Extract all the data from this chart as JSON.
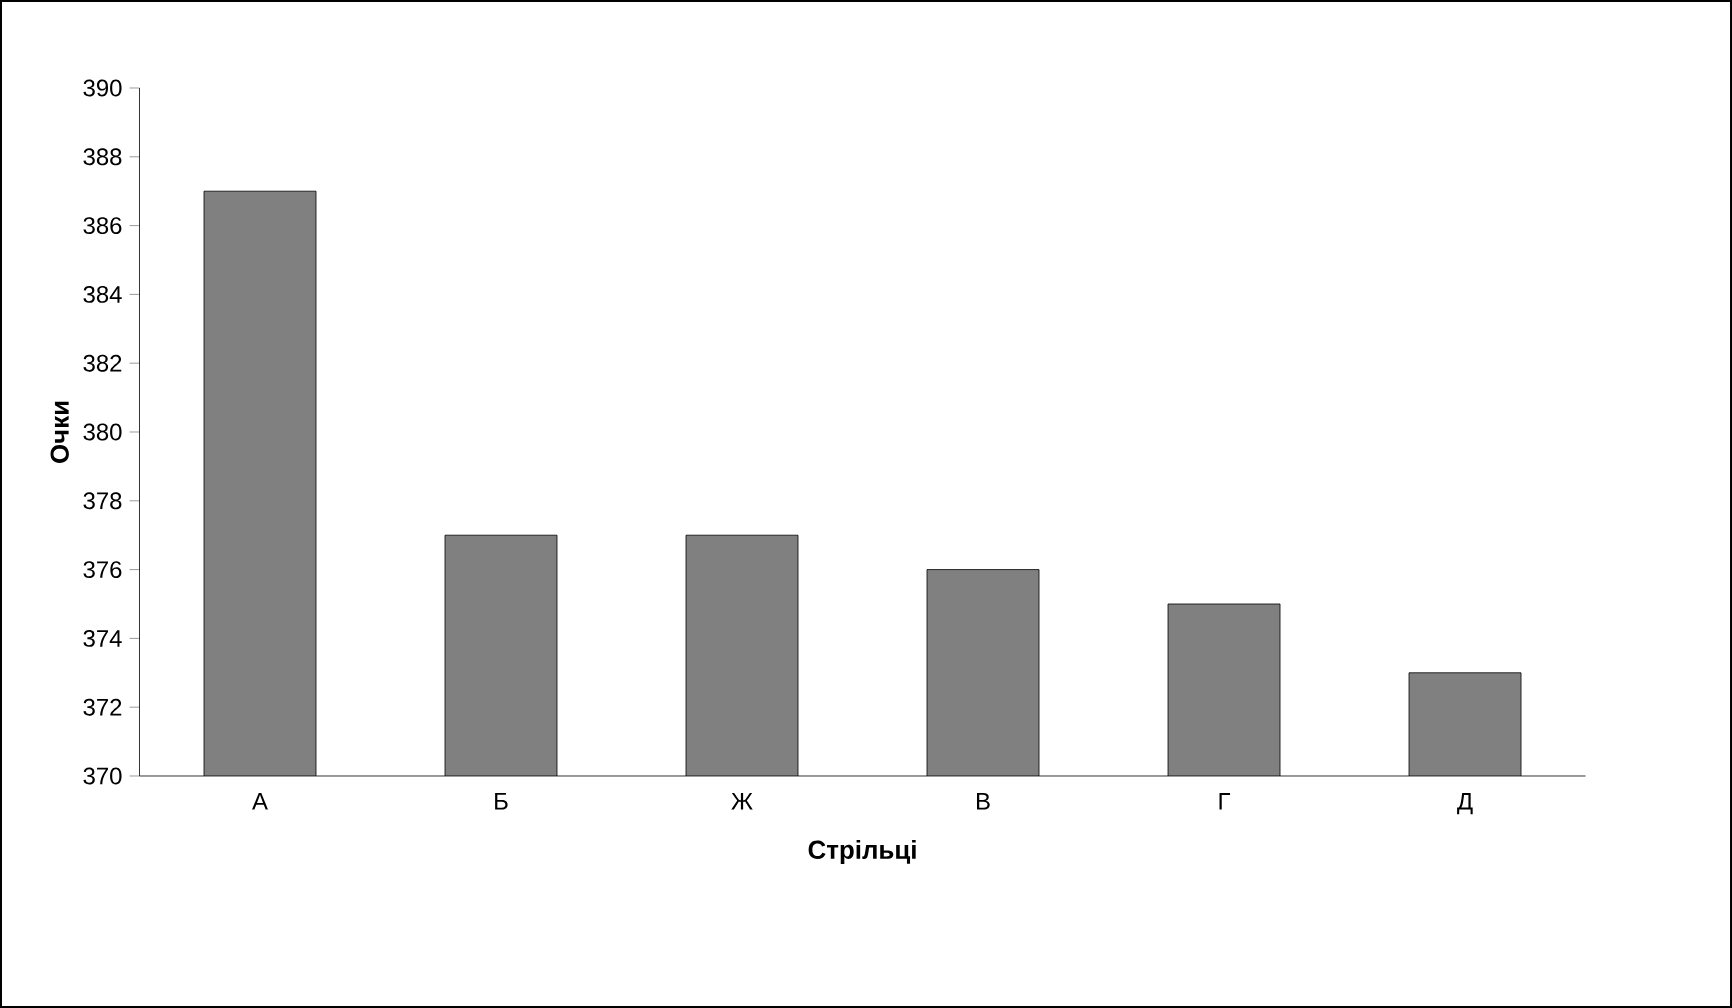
{
  "chart_data": {
    "type": "bar",
    "xlabel": "Стрільці",
    "ylabel": "Очки",
    "categories": [
      "А",
      "Б",
      "Ж",
      "В",
      "Г",
      "Д"
    ],
    "values": [
      387,
      377,
      377,
      376,
      375,
      373
    ],
    "color": "#808080",
    "ylim": [
      370,
      390
    ],
    "yticks": [
      370,
      372,
      374,
      376,
      378,
      380,
      382,
      384,
      386,
      388,
      390
    ]
  }
}
